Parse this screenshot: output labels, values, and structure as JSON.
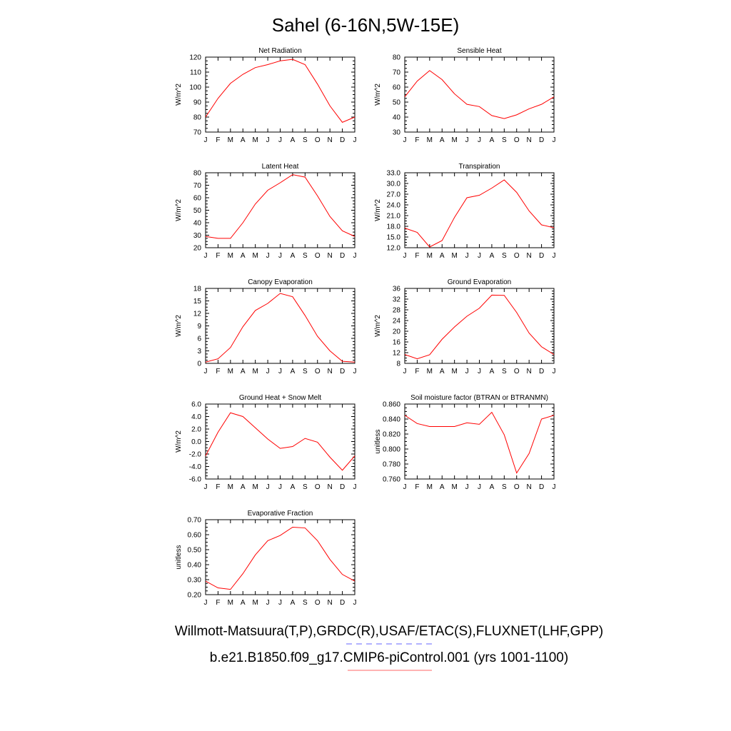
{
  "page": {
    "title": "Sahel (6-16N,5W-15E)",
    "legend": [
      {
        "label": "Willmott-Matsuura(T,P),GRDC(R),USAF/ETAC(S),FLUXNET(LHF,GPP)",
        "color": "#6666ff",
        "dash": true
      },
      {
        "label": "b.e21.B1850.f09_g17.CMIP6-piControl.001 (yrs 1001-1100)",
        "color": "#ff6666",
        "dash": false
      }
    ]
  },
  "chart_data": [
    {
      "type": "line",
      "title": "Net Radiation",
      "ylabel": "W/m^2",
      "x": [
        "J",
        "F",
        "M",
        "A",
        "M",
        "J",
        "J",
        "A",
        "S",
        "O",
        "N",
        "D",
        "J"
      ],
      "ylim": [
        70,
        120
      ],
      "yticks": [
        "70",
        "80",
        "90",
        "100",
        "110",
        "120"
      ],
      "series": [
        {
          "color": "#ff0000",
          "values": [
            80,
            92.5,
            102.5,
            108.5,
            113,
            115,
            117.5,
            118.5,
            115,
            102,
            87.5,
            76.5,
            80
          ]
        }
      ]
    },
    {
      "type": "line",
      "title": "Sensible Heat",
      "ylabel": "W/m^2",
      "x": [
        "J",
        "F",
        "M",
        "A",
        "M",
        "J",
        "J",
        "A",
        "S",
        "O",
        "N",
        "D",
        "J"
      ],
      "ylim": [
        30,
        80
      ],
      "yticks": [
        "30",
        "40",
        "50",
        "60",
        "70",
        "80"
      ],
      "series": [
        {
          "color": "#ff0000",
          "values": [
            53.5,
            64,
            71,
            65,
            55.5,
            48.5,
            47,
            41,
            39,
            41.5,
            45.5,
            48.5,
            53.5
          ]
        }
      ]
    },
    {
      "type": "line",
      "title": "Latent Heat",
      "ylabel": "W/m^2",
      "x": [
        "J",
        "F",
        "M",
        "A",
        "M",
        "J",
        "J",
        "A",
        "S",
        "O",
        "N",
        "D",
        "J"
      ],
      "ylim": [
        20,
        80
      ],
      "yticks": [
        "20",
        "30",
        "40",
        "50",
        "60",
        "70",
        "80"
      ],
      "series": [
        {
          "color": "#ff0000",
          "values": [
            29,
            27.5,
            27.5,
            40,
            55,
            66,
            72,
            78.5,
            76.5,
            61.5,
            45,
            33.5,
            29
          ]
        }
      ]
    },
    {
      "type": "line",
      "title": "Transpiration",
      "ylabel": "W/m^2",
      "x": [
        "J",
        "F",
        "M",
        "A",
        "M",
        "J",
        "J",
        "A",
        "S",
        "O",
        "N",
        "D",
        "J"
      ],
      "ylim": [
        12,
        33
      ],
      "yticks": [
        "12.0",
        "15.0",
        "18.0",
        "21.0",
        "24.0",
        "27.0",
        "30.0",
        "33.0"
      ],
      "series": [
        {
          "color": "#ff0000",
          "values": [
            17.5,
            16.3,
            12.2,
            14,
            20.5,
            26,
            26.7,
            28.7,
            31,
            27.5,
            22.3,
            18.4,
            17.6
          ]
        }
      ]
    },
    {
      "type": "line",
      "title": "Canopy Evaporation",
      "ylabel": "W/m^2",
      "x": [
        "J",
        "F",
        "M",
        "A",
        "M",
        "J",
        "J",
        "A",
        "S",
        "O",
        "N",
        "D",
        "J"
      ],
      "ylim": [
        0,
        18
      ],
      "yticks": [
        "0",
        "3",
        "6",
        "9",
        "12",
        "15",
        "18"
      ],
      "series": [
        {
          "color": "#ff0000",
          "values": [
            0.3,
            1.1,
            3.8,
            8.8,
            12.7,
            14.4,
            16.8,
            16,
            11.5,
            6.5,
            3,
            0.5,
            0.3
          ]
        }
      ]
    },
    {
      "type": "line",
      "title": "Ground Evaporation",
      "ylabel": "W/m^2",
      "x": [
        "J",
        "F",
        "M",
        "A",
        "M",
        "J",
        "J",
        "A",
        "S",
        "O",
        "N",
        "D",
        "J"
      ],
      "ylim": [
        8,
        36
      ],
      "yticks": [
        "8",
        "12",
        "16",
        "20",
        "24",
        "28",
        "32",
        "36"
      ],
      "series": [
        {
          "color": "#ff0000",
          "values": [
            11.3,
            9.7,
            11.2,
            17,
            21.6,
            25.6,
            28.6,
            33.5,
            33.4,
            27,
            19.3,
            14.2,
            11.3
          ]
        }
      ]
    },
    {
      "type": "line",
      "title": "Ground Heat + Snow Melt",
      "ylabel": "W/m^2",
      "x": [
        "J",
        "F",
        "M",
        "A",
        "M",
        "J",
        "J",
        "A",
        "S",
        "O",
        "N",
        "D",
        "J"
      ],
      "ylim": [
        -6,
        6
      ],
      "yticks": [
        "-6.0",
        "-4.0",
        "-2.0",
        "0.0",
        "2.0",
        "4.0",
        "6.0"
      ],
      "series": [
        {
          "color": "#ff0000",
          "values": [
            -2.3,
            1.5,
            4.6,
            4.0,
            2.2,
            0.4,
            -1.1,
            -0.8,
            0.5,
            -0.1,
            -2.5,
            -4.6,
            -2.3
          ]
        }
      ]
    },
    {
      "type": "line",
      "title": "Soil moisture factor (BTRAN or BTRANMN)",
      "ylabel": "unitless",
      "x": [
        "J",
        "F",
        "M",
        "A",
        "M",
        "J",
        "J",
        "A",
        "S",
        "O",
        "N",
        "D",
        "J"
      ],
      "ylim": [
        0.76,
        0.86
      ],
      "yticks": [
        "0.760",
        "0.780",
        "0.800",
        "0.820",
        "0.840",
        "0.860"
      ],
      "series": [
        {
          "color": "#ff0000",
          "values": [
            0.845,
            0.834,
            0.83,
            0.83,
            0.83,
            0.835,
            0.833,
            0.849,
            0.819,
            0.768,
            0.794,
            0.84,
            0.845
          ]
        }
      ]
    },
    {
      "type": "line",
      "title": "Evaporative Fraction",
      "ylabel": "unitless",
      "x": [
        "J",
        "F",
        "M",
        "A",
        "M",
        "J",
        "J",
        "A",
        "S",
        "O",
        "N",
        "D",
        "J"
      ],
      "ylim": [
        0.2,
        0.7
      ],
      "yticks": [
        "0.20",
        "0.30",
        "0.40",
        "0.50",
        "0.60",
        "0.70"
      ],
      "series": [
        {
          "color": "#ff0000",
          "values": [
            0.29,
            0.245,
            0.235,
            0.34,
            0.465,
            0.56,
            0.595,
            0.65,
            0.645,
            0.56,
            0.435,
            0.335,
            0.29
          ]
        }
      ]
    }
  ]
}
